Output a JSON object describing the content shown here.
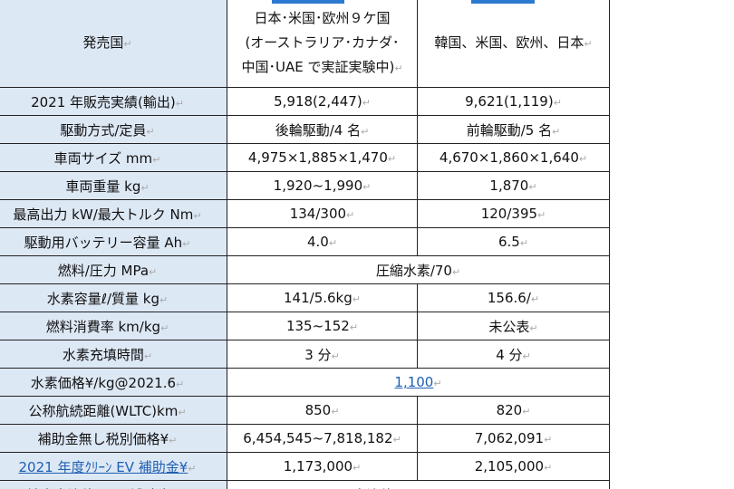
{
  "table": {
    "rows": [
      [
        {
          "label": "発売国"
        },
        {
          "lines": [
            "日本･米国･欧州９ケ国",
            "(オーストラリア･カナダ･",
            "中国･UAE で実証実験中)"
          ]
        },
        {
          "label": "韓国、米国、欧州、日本"
        }
      ],
      [
        {
          "label": "2021 年販売実績(輸出)"
        },
        {
          "label": "5,918(2,447)"
        },
        {
          "label": "9,621(1,119)"
        }
      ],
      [
        {
          "label": "駆動方式/定員"
        },
        {
          "label": "後輪駆動/4 名"
        },
        {
          "label": "前輪駆動/5 名"
        }
      ],
      [
        {
          "label": "車両サイズ mm"
        },
        {
          "label": "4,975×1,885×1,470"
        },
        {
          "label": "4,670×1,860×1,640"
        }
      ],
      [
        {
          "label": "車両重量 kg"
        },
        {
          "label": "1,920~1,990"
        },
        {
          "label": "1,870"
        }
      ],
      [
        {
          "label": "最高出力 kW/最大トルク Nm"
        },
        {
          "label": "134/300"
        },
        {
          "label": "120/395"
        }
      ],
      [
        {
          "label": "駆動用バッテリー容量 Ah"
        },
        {
          "label": "4.0"
        },
        {
          "label": "6.5"
        }
      ],
      [
        {
          "label": "燃料/圧力 MPa"
        },
        {
          "label": "圧縮水素/70"
        }
      ],
      [
        {
          "label": "水素容量ℓ/質量 kg"
        },
        {
          "label": "141/5.6kg"
        },
        {
          "label": "156.6/"
        }
      ],
      [
        {
          "label": "燃料消費率 km/kg"
        },
        {
          "label": "135~152"
        },
        {
          "label": "未公表"
        }
      ],
      [
        {
          "label": "水素充填時間"
        },
        {
          "label": "3 分"
        },
        {
          "label": "4 分"
        }
      ],
      [
        {
          "label": "水素価格¥/kg@2021.6"
        },
        {
          "label": "1,100"
        }
      ],
      [
        {
          "label": "公称航続距離(WLTC)km"
        },
        {
          "label": "850"
        },
        {
          "label": "820"
        }
      ],
      [
        {
          "label": "補助金無し税別価格¥"
        },
        {
          "label": "6,454,545~7,818,182"
        },
        {
          "label": "7,062,091"
        }
      ],
      [
        {
          "label": "2021 年度ｸﾘｰﾝ EV 補助金¥"
        },
        {
          "label": "1,173,000"
        },
        {
          "label": "2,105,000"
        }
      ],
      [
        {
          "label": "地方自治体 FCV 補助金¥"
        },
        {
          "label": "自治体により異なる"
        }
      ]
    ]
  }
}
